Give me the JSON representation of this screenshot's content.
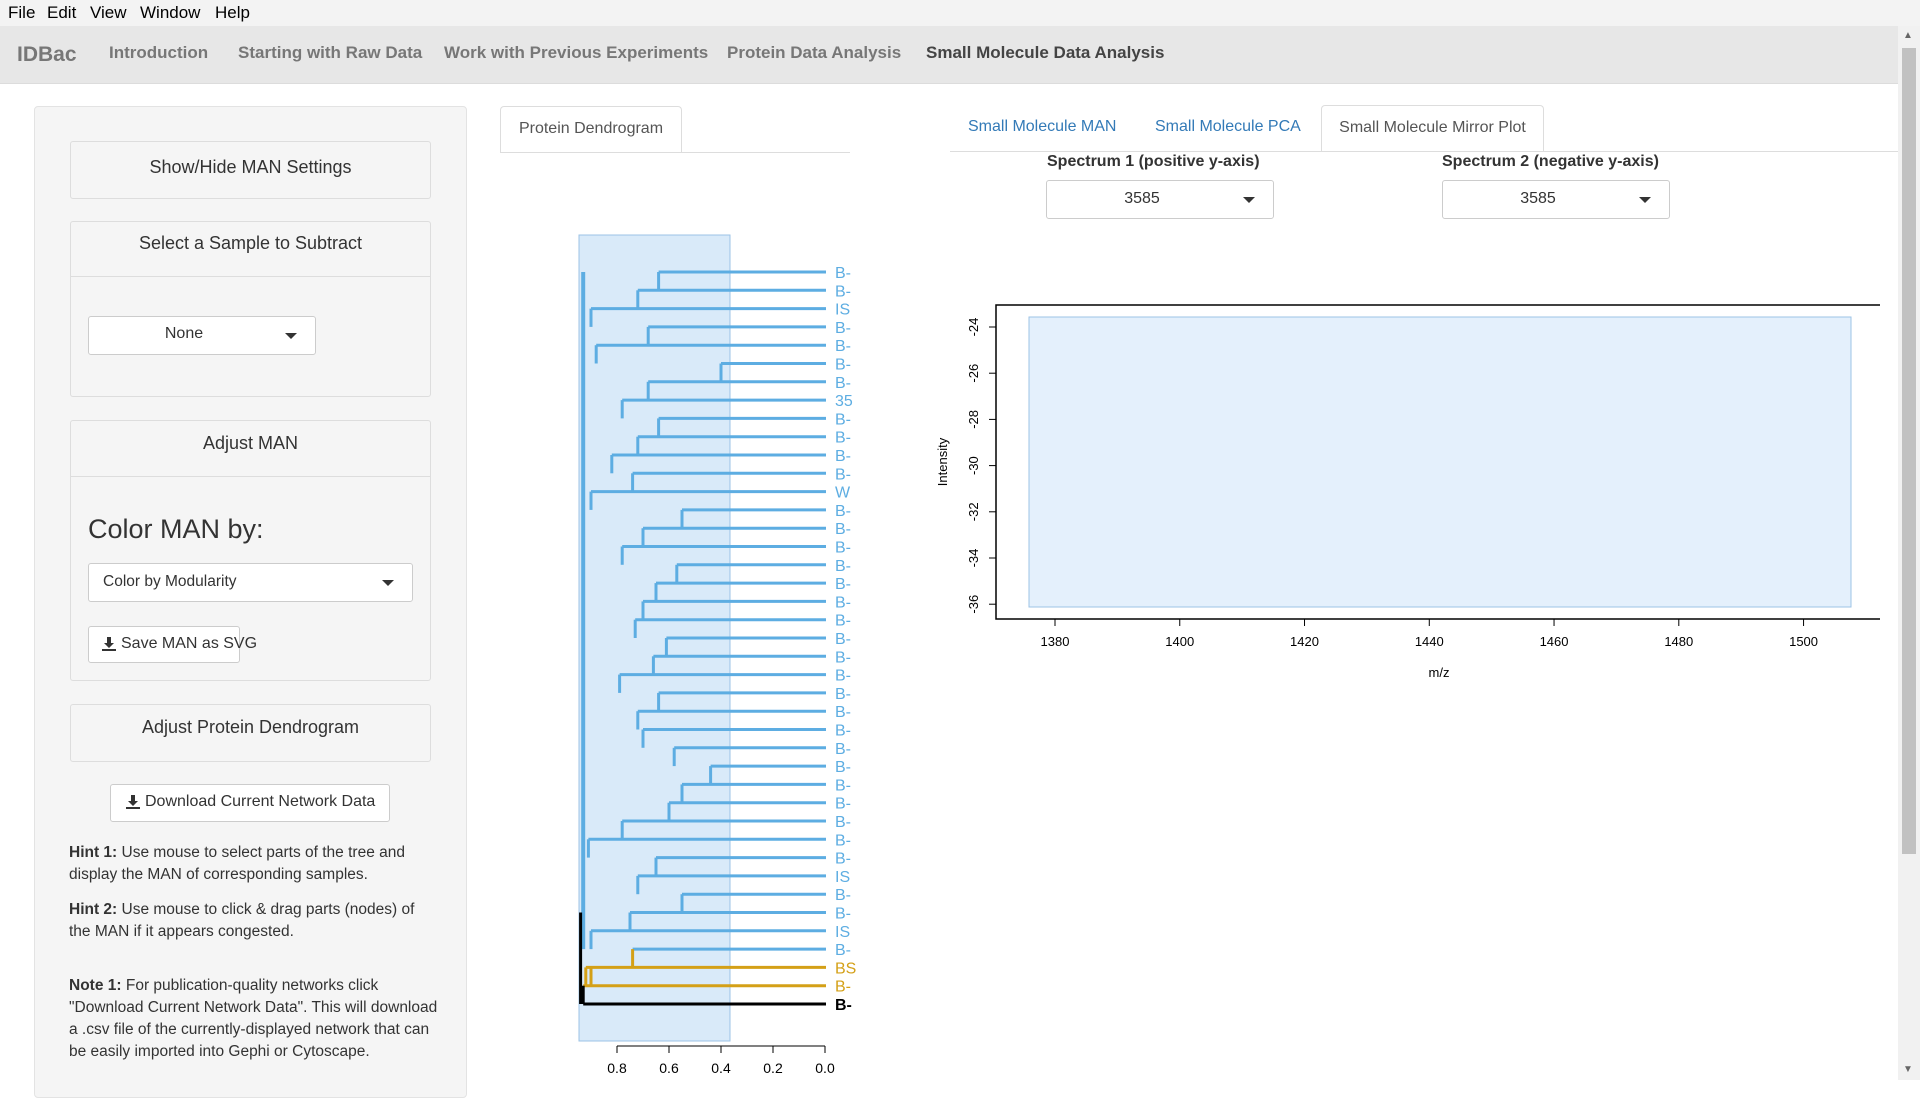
{
  "menubar": {
    "file": "File",
    "edit": "Edit",
    "view": "View",
    "window": "Window",
    "help": "Help"
  },
  "navbar": {
    "brand": "IDBac",
    "tabs": [
      "Introduction",
      "Starting with Raw Data",
      "Work with Previous Experiments",
      "Protein Data Analysis",
      "Small Molecule Data Analysis"
    ],
    "active_tab": "Small Molecule Data Analysis"
  },
  "sidebar": {
    "show_hide_label": "Show/Hide MAN Settings",
    "select_sample_label": "Select a Sample to Subtract",
    "sample_select_value": "None",
    "adjust_man_label": "Adjust MAN",
    "color_man_label": "Color MAN by:",
    "color_select_value": "Color by Modularity",
    "save_svg_label": "Save MAN as SVG",
    "adjust_dendro_label": "Adjust Protein Dendrogram",
    "download_label": "Download Current Network Data",
    "hint1_title": "Hint 1:",
    "hint1_text": " Use mouse to select parts of the tree and display the MAN of corresponding samples.",
    "hint2_title": "Hint 2:",
    "hint2_text": " Use mouse to click & drag parts (nodes) of the MAN if it appears congested.",
    "note1_title": "Note 1:",
    "note1_text": " For publication-quality networks click \"Download Current Network Data\". This will download a .csv file of the currently-displayed network that can be easily imported into Gephi or Cytoscape."
  },
  "dendrogram": {
    "tab_label": "Protein Dendrogram",
    "axis_ticks": [
      "0.8",
      "0.6",
      "0.4",
      "0.2",
      "0.0"
    ],
    "leaf_labels": [
      "B-",
      "B-",
      "IS",
      "B-",
      "B-",
      "B-",
      "B-",
      "35",
      "B-",
      "B-",
      "B-",
      "B-",
      "W",
      "B-",
      "B-",
      "B-",
      "B-",
      "B-",
      "B-",
      "B-",
      "B-",
      "B-",
      "B-",
      "B-",
      "B-",
      "B-",
      "B-",
      "B-",
      "B-",
      "B-",
      "B-",
      "B-",
      "B-",
      "IS",
      "B-",
      "B-",
      "IS",
      "B-",
      "BS",
      "B-",
      "B-"
    ],
    "colors": {
      "blue": "#5dade2",
      "orange": "#d4a017",
      "black": "#000000",
      "selection": "#d9eaf9"
    }
  },
  "mirror": {
    "tabs": [
      "Small Molecule MAN",
      "Small Molecule PCA",
      "Small Molecule Mirror Plot"
    ],
    "active_tab": "Small Molecule Mirror Plot",
    "spectrum1_label": "Spectrum 1 (positive y-axis)",
    "spectrum1_value": "3585",
    "spectrum2_label": "Spectrum 2 (negative y-axis)",
    "spectrum2_value": "3585",
    "ylabel": "Intensity",
    "xlabel": "m/z",
    "y_ticks": [
      "-24",
      "-26",
      "-28",
      "-30",
      "-32",
      "-34",
      "-36"
    ],
    "x_ticks": [
      "1380",
      "1400",
      "1420",
      "1440",
      "1460",
      "1480",
      "1500"
    ]
  }
}
